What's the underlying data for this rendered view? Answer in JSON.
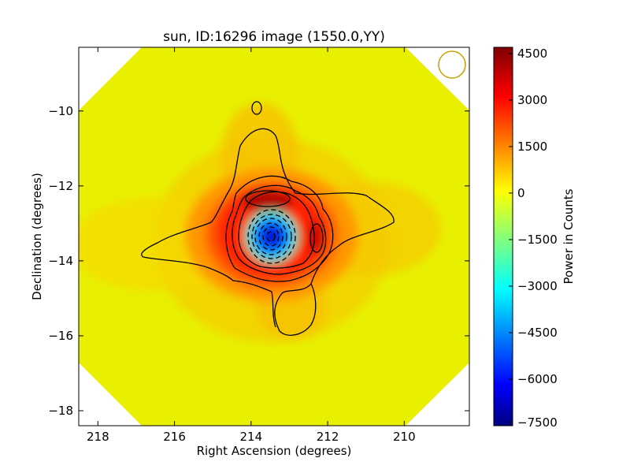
{
  "chart_data": {
    "type": "heatmap",
    "title": "sun, ID:16296 image (1550.0,YY)",
    "xlabel": "Right Ascension (degrees)",
    "ylabel": "Declination (degrees)",
    "xlim": [
      218.5,
      208.3
    ],
    "ylim": [
      -18.4,
      -8.3
    ],
    "x_ticks": [
      218,
      216,
      214,
      212,
      210
    ],
    "x_tick_labels": [
      "218",
      "216",
      "214",
      "212",
      "210"
    ],
    "y_ticks": [
      -10,
      -12,
      -14,
      -16,
      -18
    ],
    "y_tick_labels": [
      "−10",
      "−12",
      "−14",
      "−16",
      "−18"
    ],
    "grid": false,
    "colorbar": {
      "label": "Power in Counts",
      "colormap": "jet",
      "range": [
        -7500,
        4700
      ],
      "ticks": [
        4500,
        3000,
        1500,
        0,
        -1500,
        -3000,
        -4500,
        -6000,
        -7500
      ],
      "tick_labels": [
        "4500",
        "3000",
        "1500",
        "0",
        "−1500",
        "−3000",
        "−4500",
        "−6000",
        "−7500"
      ]
    },
    "features": [
      {
        "kind": "minimum",
        "ra": 213.4,
        "dec": -13.4,
        "value": -7000
      },
      {
        "kind": "peak",
        "ra": 213.8,
        "dec": -12.4,
        "value": 4500
      },
      {
        "kind": "peak",
        "ra": 212.1,
        "dec": -13.4,
        "value": 3800
      },
      {
        "kind": "background",
        "value": 0
      },
      {
        "kind": "beam_marker",
        "ra": 208.75,
        "dec": -8.75,
        "radius_deg": 0.37
      }
    ],
    "colors": {
      "background_field": "#e8f000",
      "beam_marker": "#c8a000",
      "contour": "#000000"
    }
  }
}
